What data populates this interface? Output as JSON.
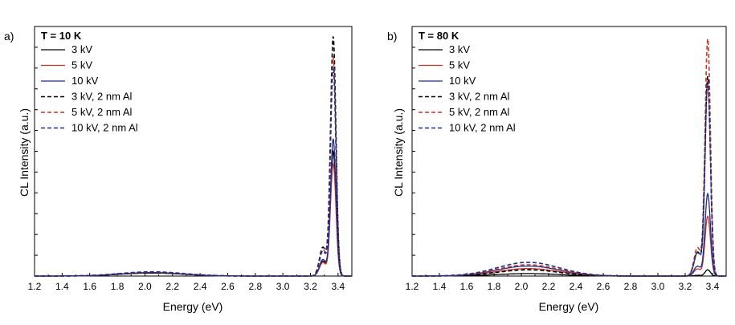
{
  "chart_data": [
    {
      "type": "line",
      "panel_label": "a)",
      "annotation": "T = 10 K",
      "xlabel": "Energy (eV)",
      "ylabel": "CL Intensity (a.u.)",
      "xlim": [
        1.2,
        3.5
      ],
      "ylim": [
        0,
        1.0
      ],
      "x_ticks": [
        "1.2",
        "1.4",
        "1.6",
        "1.8",
        "2.0",
        "2.2",
        "2.4",
        "2.6",
        "2.8",
        "3.0",
        "3.2",
        "3.4"
      ],
      "y_tick_labels": false,
      "legend_position": "top-left",
      "series": [
        {
          "name": "3 kV",
          "color": "#000000",
          "dash": "solid",
          "defect_peak": 0.012,
          "nbe_peak": 0.5
        },
        {
          "name": "5 kV",
          "color": "#c0392b",
          "dash": "solid",
          "defect_peak": 0.013,
          "nbe_peak": 0.45
        },
        {
          "name": "10 kV",
          "color": "#1f2d8a",
          "dash": "solid",
          "defect_peak": 0.014,
          "nbe_peak": 0.55
        },
        {
          "name": "3 kV, 2 nm Al",
          "color": "#000000",
          "dash": "dashed",
          "defect_peak": 0.014,
          "nbe_peak": 0.96
        },
        {
          "name": "5 kV, 2 nm Al",
          "color": "#c0392b",
          "dash": "dashed",
          "defect_peak": 0.016,
          "nbe_peak": 0.88
        },
        {
          "name": "10 kV, 2 nm Al",
          "color": "#1f2d8a",
          "dash": "dashed",
          "defect_peak": 0.017,
          "nbe_peak": 0.84
        }
      ]
    },
    {
      "type": "line",
      "panel_label": "b)",
      "annotation": "T = 80 K",
      "xlabel": "Energy (eV)",
      "ylabel": "CL Intensity (a.u.)",
      "xlim": [
        1.2,
        3.5
      ],
      "ylim": [
        0,
        1.0
      ],
      "x_ticks": [
        "1.2",
        "1.4",
        "1.6",
        "1.8",
        "2.0",
        "2.2",
        "2.4",
        "2.6",
        "2.8",
        "3.0",
        "3.2",
        "3.4"
      ],
      "y_tick_labels": false,
      "legend_position": "top-left",
      "series": [
        {
          "name": "3 kV",
          "color": "#000000",
          "dash": "solid",
          "defect_peak": 0.01,
          "nbe_peak": 0.025
        },
        {
          "name": "5 kV",
          "color": "#c0392b",
          "dash": "solid",
          "defect_peak": 0.03,
          "nbe_peak": 0.24
        },
        {
          "name": "10 kV",
          "color": "#1f2d8a",
          "dash": "solid",
          "defect_peak": 0.04,
          "nbe_peak": 0.33
        },
        {
          "name": "3 kV, 2 nm Al",
          "color": "#000000",
          "dash": "dashed",
          "defect_peak": 0.025,
          "nbe_peak": 0.8
        },
        {
          "name": "5 kV, 2 nm Al",
          "color": "#c0392b",
          "dash": "dashed",
          "defect_peak": 0.045,
          "nbe_peak": 0.95
        },
        {
          "name": "10 kV, 2 nm Al",
          "color": "#1f2d8a",
          "dash": "dashed",
          "defect_peak": 0.055,
          "nbe_peak": 0.78
        }
      ]
    }
  ]
}
